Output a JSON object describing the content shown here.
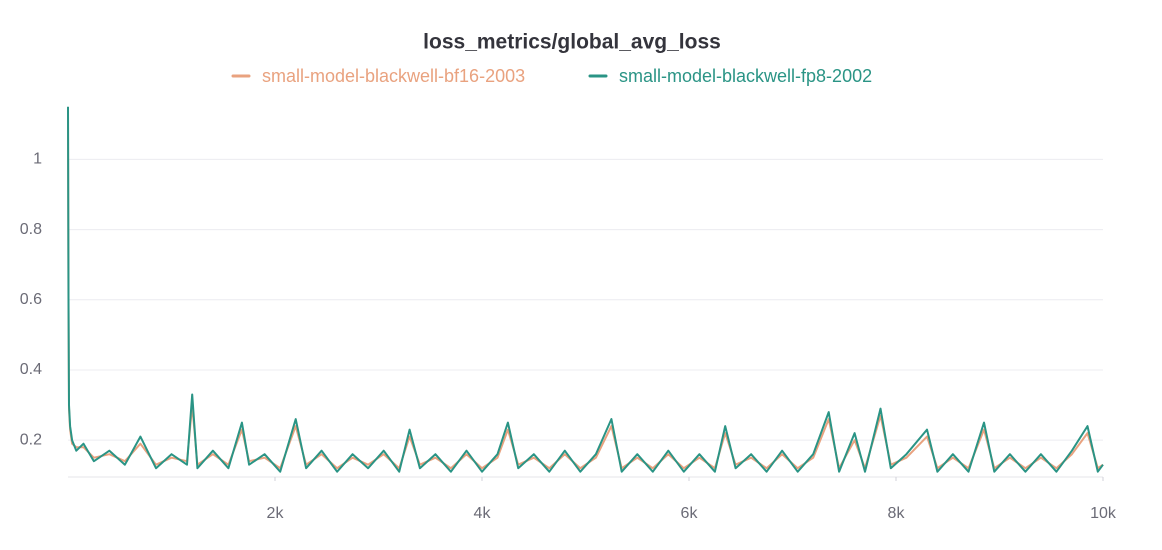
{
  "chart_data": {
    "type": "line",
    "title": "loss_metrics/global_avg_loss",
    "x": [
      0,
      5,
      10,
      20,
      40,
      80,
      150,
      250,
      400,
      550,
      700,
      850,
      1000,
      1150,
      1200,
      1250,
      1400,
      1550,
      1680,
      1750,
      1900,
      2050,
      2200,
      2300,
      2450,
      2600,
      2750,
      2900,
      3050,
      3200,
      3300,
      3400,
      3550,
      3700,
      3850,
      4000,
      4150,
      4250,
      4350,
      4500,
      4650,
      4800,
      4950,
      5100,
      5250,
      5350,
      5500,
      5650,
      5800,
      5950,
      6100,
      6250,
      6350,
      6450,
      6600,
      6750,
      6900,
      7050,
      7200,
      7350,
      7450,
      7600,
      7700,
      7850,
      7950,
      8100,
      8300,
      8400,
      8550,
      8700,
      8850,
      8950,
      9100,
      9250,
      9400,
      9550,
      9700,
      9850,
      9950,
      10000
    ],
    "series": [
      {
        "name": "small-model-blackwell-bf16-2003",
        "color": "#e9a27f",
        "values": [
          1.14,
          0.58,
          0.29,
          0.23,
          0.19,
          0.18,
          0.18,
          0.15,
          0.16,
          0.14,
          0.19,
          0.13,
          0.15,
          0.14,
          0.3,
          0.13,
          0.16,
          0.13,
          0.23,
          0.14,
          0.15,
          0.12,
          0.24,
          0.13,
          0.16,
          0.12,
          0.15,
          0.13,
          0.16,
          0.12,
          0.21,
          0.13,
          0.15,
          0.12,
          0.16,
          0.12,
          0.15,
          0.23,
          0.13,
          0.15,
          0.12,
          0.16,
          0.12,
          0.15,
          0.24,
          0.12,
          0.15,
          0.12,
          0.16,
          0.12,
          0.15,
          0.12,
          0.22,
          0.13,
          0.15,
          0.12,
          0.16,
          0.12,
          0.15,
          0.26,
          0.12,
          0.2,
          0.12,
          0.27,
          0.13,
          0.15,
          0.21,
          0.12,
          0.15,
          0.12,
          0.23,
          0.12,
          0.15,
          0.12,
          0.15,
          0.12,
          0.16,
          0.22,
          0.12,
          0.13
        ]
      },
      {
        "name": "small-model-blackwell-fp8-2002",
        "color": "#2a9485",
        "values": [
          1.15,
          0.6,
          0.3,
          0.24,
          0.2,
          0.17,
          0.19,
          0.14,
          0.17,
          0.13,
          0.21,
          0.12,
          0.16,
          0.13,
          0.33,
          0.12,
          0.17,
          0.12,
          0.25,
          0.13,
          0.16,
          0.11,
          0.26,
          0.12,
          0.17,
          0.11,
          0.16,
          0.12,
          0.17,
          0.11,
          0.23,
          0.12,
          0.16,
          0.11,
          0.17,
          0.11,
          0.16,
          0.25,
          0.12,
          0.16,
          0.11,
          0.17,
          0.11,
          0.16,
          0.26,
          0.11,
          0.16,
          0.11,
          0.17,
          0.11,
          0.16,
          0.11,
          0.24,
          0.12,
          0.16,
          0.11,
          0.17,
          0.11,
          0.16,
          0.28,
          0.11,
          0.22,
          0.11,
          0.29,
          0.12,
          0.16,
          0.23,
          0.11,
          0.16,
          0.11,
          0.25,
          0.11,
          0.16,
          0.11,
          0.16,
          0.11,
          0.17,
          0.24,
          0.11,
          0.13
        ]
      }
    ],
    "xlim": [
      0,
      10000
    ],
    "xticks": [
      {
        "value": 2000,
        "label": "2k"
      },
      {
        "value": 4000,
        "label": "4k"
      },
      {
        "value": 6000,
        "label": "6k"
      },
      {
        "value": 8000,
        "label": "8k"
      },
      {
        "value": 10000,
        "label": "10k"
      }
    ],
    "ylim": [
      0.095,
      1.155
    ],
    "yticks": [
      0.2,
      0.4,
      0.6,
      0.8,
      1
    ],
    "grid": true
  }
}
